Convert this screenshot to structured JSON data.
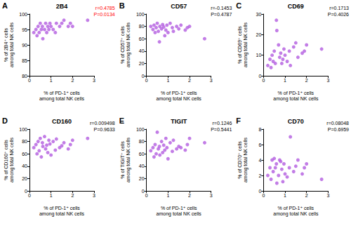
{
  "chart_data": [
    {
      "type": "scatter",
      "panel": "A",
      "title": "2B4",
      "xlabel": "% of PD-1⁺ cells\namong total NK cells",
      "ylabel": "% of 2B4⁺ cells\namong total NK cells",
      "x": [
        0.2,
        0.3,
        0.35,
        0.4,
        0.45,
        0.5,
        0.55,
        0.6,
        0.62,
        0.7,
        0.75,
        0.8,
        0.85,
        0.9,
        0.95,
        1.0,
        1.1,
        1.2,
        1.25,
        1.4,
        1.5,
        1.6,
        1.8,
        1.9,
        2.0,
        2.7
      ],
      "values": [
        94,
        95,
        93,
        96,
        94,
        97,
        95,
        96,
        92,
        95,
        97,
        94,
        96,
        95,
        97,
        96,
        95,
        94,
        97,
        96,
        97,
        98,
        96,
        97,
        96,
        98
      ],
      "xlim": [
        0,
        3
      ],
      "xticks": [
        0,
        1,
        2,
        3
      ],
      "ylim": [
        80,
        100
      ],
      "yticks": [
        80,
        85,
        90,
        95,
        100
      ],
      "color": "#b35ce0",
      "marker": "circle",
      "grid": false,
      "annotations": [
        {
          "text": "r=0.4785",
          "color": "#ff0000"
        },
        {
          "text": "P=0.0134",
          "color": "#ff0000"
        }
      ]
    },
    {
      "type": "scatter",
      "panel": "B",
      "title": "CD57",
      "xlabel": "% of PD-1⁺ cells\namong total NK cells",
      "ylabel": "% of CD57⁺ cells\namong total NK cells",
      "x": [
        0.2,
        0.3,
        0.35,
        0.4,
        0.45,
        0.5,
        0.55,
        0.6,
        0.62,
        0.7,
        0.75,
        0.8,
        0.85,
        0.9,
        0.95,
        1.0,
        1.1,
        1.2,
        1.25,
        1.4,
        1.5,
        1.6,
        1.8,
        1.9,
        2.0,
        2.7
      ],
      "values": [
        80,
        75,
        82,
        70,
        78,
        85,
        72,
        55,
        80,
        76,
        83,
        79,
        65,
        74,
        82,
        70,
        85,
        78,
        72,
        80,
        76,
        82,
        74,
        78,
        80,
        60
      ],
      "xlim": [
        0,
        3
      ],
      "xticks": [
        0,
        1,
        2,
        3
      ],
      "ylim": [
        0,
        100
      ],
      "yticks": [
        0,
        20,
        40,
        60,
        80,
        100
      ],
      "color": "#b35ce0",
      "marker": "circle",
      "grid": false,
      "annotations": [
        {
          "text": "r=-0.1453",
          "color": "#000000"
        },
        {
          "text": "P=0.4787",
          "color": "#000000"
        }
      ]
    },
    {
      "type": "scatter",
      "panel": "C",
      "title": "CD69",
      "xlabel": "% of PD-1⁺ cells\namong total NK cells",
      "ylabel": "% of CD69⁺ cells\namong total NK cells",
      "x": [
        0.2,
        0.3,
        0.35,
        0.4,
        0.45,
        0.5,
        0.55,
        0.6,
        0.62,
        0.7,
        0.75,
        0.8,
        0.85,
        0.9,
        0.95,
        1.0,
        1.1,
        1.2,
        1.25,
        1.4,
        1.5,
        1.6,
        1.8,
        1.9,
        2.0,
        2.7
      ],
      "values": [
        5,
        8,
        4,
        10,
        7,
        12,
        6,
        27,
        22,
        15,
        9,
        11,
        6,
        8,
        13,
        10,
        7,
        12,
        5,
        14,
        16,
        9,
        11,
        12,
        15,
        13
      ],
      "xlim": [
        0,
        3
      ],
      "xticks": [
        0,
        1,
        2,
        3
      ],
      "ylim": [
        0,
        30
      ],
      "yticks": [
        0,
        10,
        20,
        30
      ],
      "color": "#b35ce0",
      "marker": "circle",
      "grid": false,
      "annotations": [
        {
          "text": "r=0.1713",
          "color": "#000000"
        },
        {
          "text": "P=0.4026",
          "color": "#000000"
        }
      ]
    },
    {
      "type": "scatter",
      "panel": "D",
      "title": "CD160",
      "xlabel": "% of PD-1⁺ cells\namong total NK cells",
      "ylabel": "% of CD160⁺ cells\namong total NK cells",
      "x": [
        0.2,
        0.3,
        0.35,
        0.4,
        0.45,
        0.5,
        0.55,
        0.6,
        0.62,
        0.7,
        0.75,
        0.8,
        0.85,
        0.9,
        0.95,
        1.0,
        1.1,
        1.2,
        1.25,
        1.4,
        1.5,
        1.6,
        1.8,
        1.9,
        2.0,
        2.7
      ],
      "values": [
        70,
        75,
        60,
        80,
        65,
        85,
        55,
        78,
        72,
        88,
        68,
        74,
        62,
        82,
        76,
        58,
        80,
        66,
        84,
        70,
        73,
        78,
        68,
        75,
        82,
        85
      ],
      "xlim": [
        0,
        3
      ],
      "xticks": [
        0,
        1,
        2,
        3
      ],
      "ylim": [
        0,
        100
      ],
      "yticks": [
        0,
        20,
        40,
        60,
        80,
        100
      ],
      "color": "#b35ce0",
      "marker": "circle",
      "grid": false,
      "annotations": [
        {
          "text": "r=0.009498",
          "color": "#000000"
        },
        {
          "text": "P=0.9633",
          "color": "#000000"
        }
      ]
    },
    {
      "type": "scatter",
      "panel": "E",
      "title": "TIGIT",
      "xlabel": "% of PD-1⁺ cells\namong total NK cells",
      "ylabel": "% of TIGIT⁺ cells\namong total NK cells",
      "x": [
        0.2,
        0.3,
        0.35,
        0.4,
        0.45,
        0.5,
        0.55,
        0.6,
        0.62,
        0.7,
        0.75,
        0.8,
        0.85,
        0.9,
        0.95,
        1.0,
        1.1,
        1.2,
        1.25,
        1.4,
        1.5,
        1.6,
        1.8,
        1.9,
        2.0,
        2.7
      ],
      "values": [
        65,
        70,
        55,
        75,
        60,
        95,
        68,
        72,
        58,
        80,
        62,
        74,
        66,
        85,
        70,
        52,
        78,
        64,
        82,
        68,
        72,
        70,
        66,
        75,
        85,
        78
      ],
      "xlim": [
        0,
        3
      ],
      "xticks": [
        0,
        1,
        2,
        3
      ],
      "ylim": [
        0,
        100
      ],
      "yticks": [
        0,
        20,
        40,
        60,
        80,
        100
      ],
      "color": "#b35ce0",
      "marker": "circle",
      "grid": false,
      "annotations": [
        {
          "text": "r=0.1246",
          "color": "#000000"
        },
        {
          "text": "P=0.5441",
          "color": "#000000"
        }
      ]
    },
    {
      "type": "scatter",
      "panel": "F",
      "title": "CD70",
      "xlabel": "% of PD-1⁺ cells\namong total NK cells",
      "ylabel": "% of CD70⁺ cells\namong total NK cells",
      "x": [
        0.2,
        0.3,
        0.35,
        0.4,
        0.45,
        0.5,
        0.55,
        0.6,
        0.62,
        0.7,
        0.75,
        0.8,
        0.85,
        0.9,
        0.95,
        1.0,
        1.1,
        1.2,
        1.25,
        1.4,
        1.5,
        1.6,
        1.8,
        1.9,
        2.0,
        2.7
      ],
      "values": [
        2,
        3,
        1.5,
        4,
        2.5,
        4.2,
        3,
        3.5,
        1,
        2,
        4,
        3.8,
        2.8,
        1.2,
        3.5,
        2.2,
        1.8,
        3,
        7,
        2.5,
        3.2,
        4,
        2.2,
        3,
        3.5,
        1.5
      ],
      "xlim": [
        0,
        3
      ],
      "xticks": [
        0,
        1,
        2,
        3
      ],
      "ylim": [
        0,
        8
      ],
      "yticks": [
        0,
        2,
        4,
        6,
        8
      ],
      "color": "#b35ce0",
      "marker": "circle",
      "grid": false,
      "annotations": [
        {
          "text": "r=0.08048",
          "color": "#000000"
        },
        {
          "text": "P=0.6959",
          "color": "#000000"
        }
      ]
    }
  ]
}
